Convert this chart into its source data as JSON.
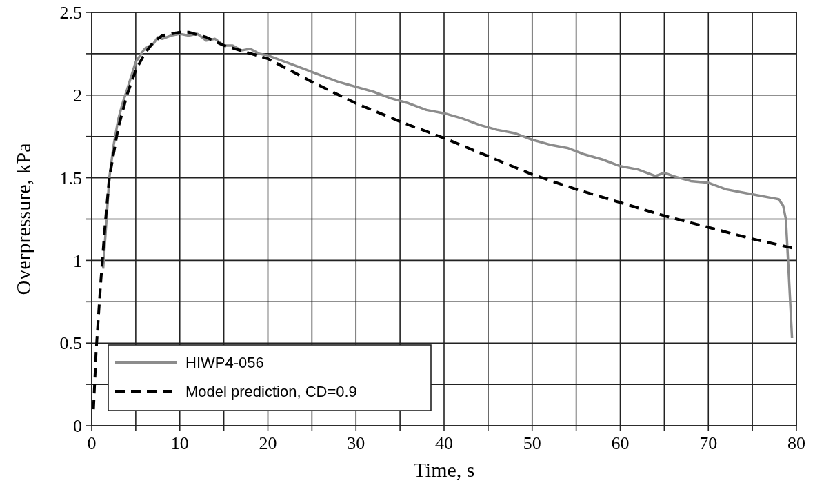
{
  "chart_data": {
    "type": "line",
    "xlabel": "Time, s",
    "ylabel": "Overpressure, kPa",
    "xlim": [
      0,
      80
    ],
    "ylim": [
      0,
      2.5
    ],
    "xticks": [
      0,
      {
        "value": 5,
        "label": null
      },
      10,
      {
        "value": 15,
        "label": null
      },
      20,
      {
        "value": 25,
        "label": null
      },
      30,
      {
        "value": 35,
        "label": null
      },
      40,
      {
        "value": 45,
        "label": null
      },
      50,
      {
        "value": 55,
        "label": null
      },
      60,
      {
        "value": 65,
        "label": null
      },
      70,
      {
        "value": 75,
        "label": null
      },
      80
    ],
    "yticks": [
      0,
      {
        "value": 0.25,
        "label": null
      },
      0.5,
      {
        "value": 0.75,
        "label": null
      },
      1,
      {
        "value": 1.25,
        "label": null
      },
      1.5,
      {
        "value": 1.75,
        "label": null
      },
      2,
      {
        "value": 2.25,
        "label": null
      },
      2.5
    ],
    "grid": true,
    "legend": "bottom left",
    "series": [
      {
        "name": "HIWP4-056",
        "color": "#8c8c8c",
        "line_style": "solid",
        "x": [
          1.3,
          2,
          2.5,
          3,
          3.5,
          4,
          5,
          6,
          7,
          7.5,
          8,
          9,
          10,
          11,
          12,
          13,
          14,
          15,
          16,
          17,
          18,
          19,
          20,
          22,
          24,
          26,
          28,
          30,
          32,
          34,
          36,
          38,
          40,
          42,
          44,
          46,
          48,
          50,
          52,
          54,
          56,
          58,
          60,
          62,
          64,
          65,
          66,
          68,
          70,
          72,
          74,
          76,
          77,
          78,
          78.5,
          78.8,
          79.1,
          79.5
        ],
        "values": [
          0.95,
          1.5,
          1.7,
          1.85,
          1.95,
          2.03,
          2.2,
          2.28,
          2.31,
          2.35,
          2.34,
          2.36,
          2.37,
          2.36,
          2.37,
          2.33,
          2.34,
          2.3,
          2.3,
          2.27,
          2.28,
          2.25,
          2.24,
          2.2,
          2.16,
          2.12,
          2.08,
          2.05,
          2.02,
          1.98,
          1.95,
          1.91,
          1.89,
          1.86,
          1.82,
          1.79,
          1.77,
          1.73,
          1.7,
          1.68,
          1.64,
          1.61,
          1.57,
          1.55,
          1.51,
          1.53,
          1.51,
          1.48,
          1.47,
          1.43,
          1.41,
          1.39,
          1.38,
          1.37,
          1.33,
          1.25,
          0.95,
          0.53
        ]
      },
      {
        "name": "Model prediction, CD=0.9",
        "color": "#000000",
        "line_style": "dashed",
        "x": [
          0.2,
          0.5,
          1,
          1.5,
          2,
          3,
          4,
          5,
          6,
          7,
          8,
          10,
          11,
          13,
          15,
          20,
          25,
          30,
          35,
          40,
          45,
          50,
          55,
          60,
          65,
          70,
          75,
          80
        ],
        "values": [
          0.1,
          0.45,
          0.85,
          1.2,
          1.5,
          1.8,
          2.0,
          2.15,
          2.25,
          2.32,
          2.36,
          2.38,
          2.38,
          2.35,
          2.3,
          2.22,
          2.08,
          1.95,
          1.84,
          1.74,
          1.63,
          1.52,
          1.43,
          1.35,
          1.27,
          1.2,
          1.13,
          1.07
        ]
      }
    ]
  }
}
